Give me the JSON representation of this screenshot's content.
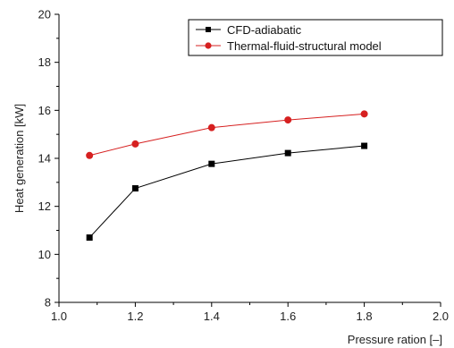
{
  "chart_data": {
    "type": "line",
    "title": "",
    "xlabel": "Pressure ration [–]",
    "ylabel": "Heat generation [kW]",
    "xlim": [
      1.0,
      2.0
    ],
    "ylim": [
      8,
      20
    ],
    "xticks": [
      "1.0",
      "1.2",
      "1.4",
      "1.6",
      "1.8",
      "2.0"
    ],
    "yticks": [
      "8",
      "10",
      "12",
      "14",
      "16",
      "18",
      "20"
    ],
    "grid": false,
    "legend_position": "top-right",
    "series": [
      {
        "name": "CFD-adiabatic",
        "color": "#000000",
        "marker": "square",
        "x": [
          1.08,
          1.2,
          1.4,
          1.6,
          1.8
        ],
        "y": [
          10.7,
          12.75,
          13.77,
          14.22,
          14.52
        ]
      },
      {
        "name": "Thermal-fluid-structural model",
        "color": "#d62020",
        "marker": "circle",
        "x": [
          1.08,
          1.2,
          1.4,
          1.6,
          1.8
        ],
        "y": [
          14.12,
          14.6,
          15.28,
          15.6,
          15.85
        ]
      }
    ]
  }
}
